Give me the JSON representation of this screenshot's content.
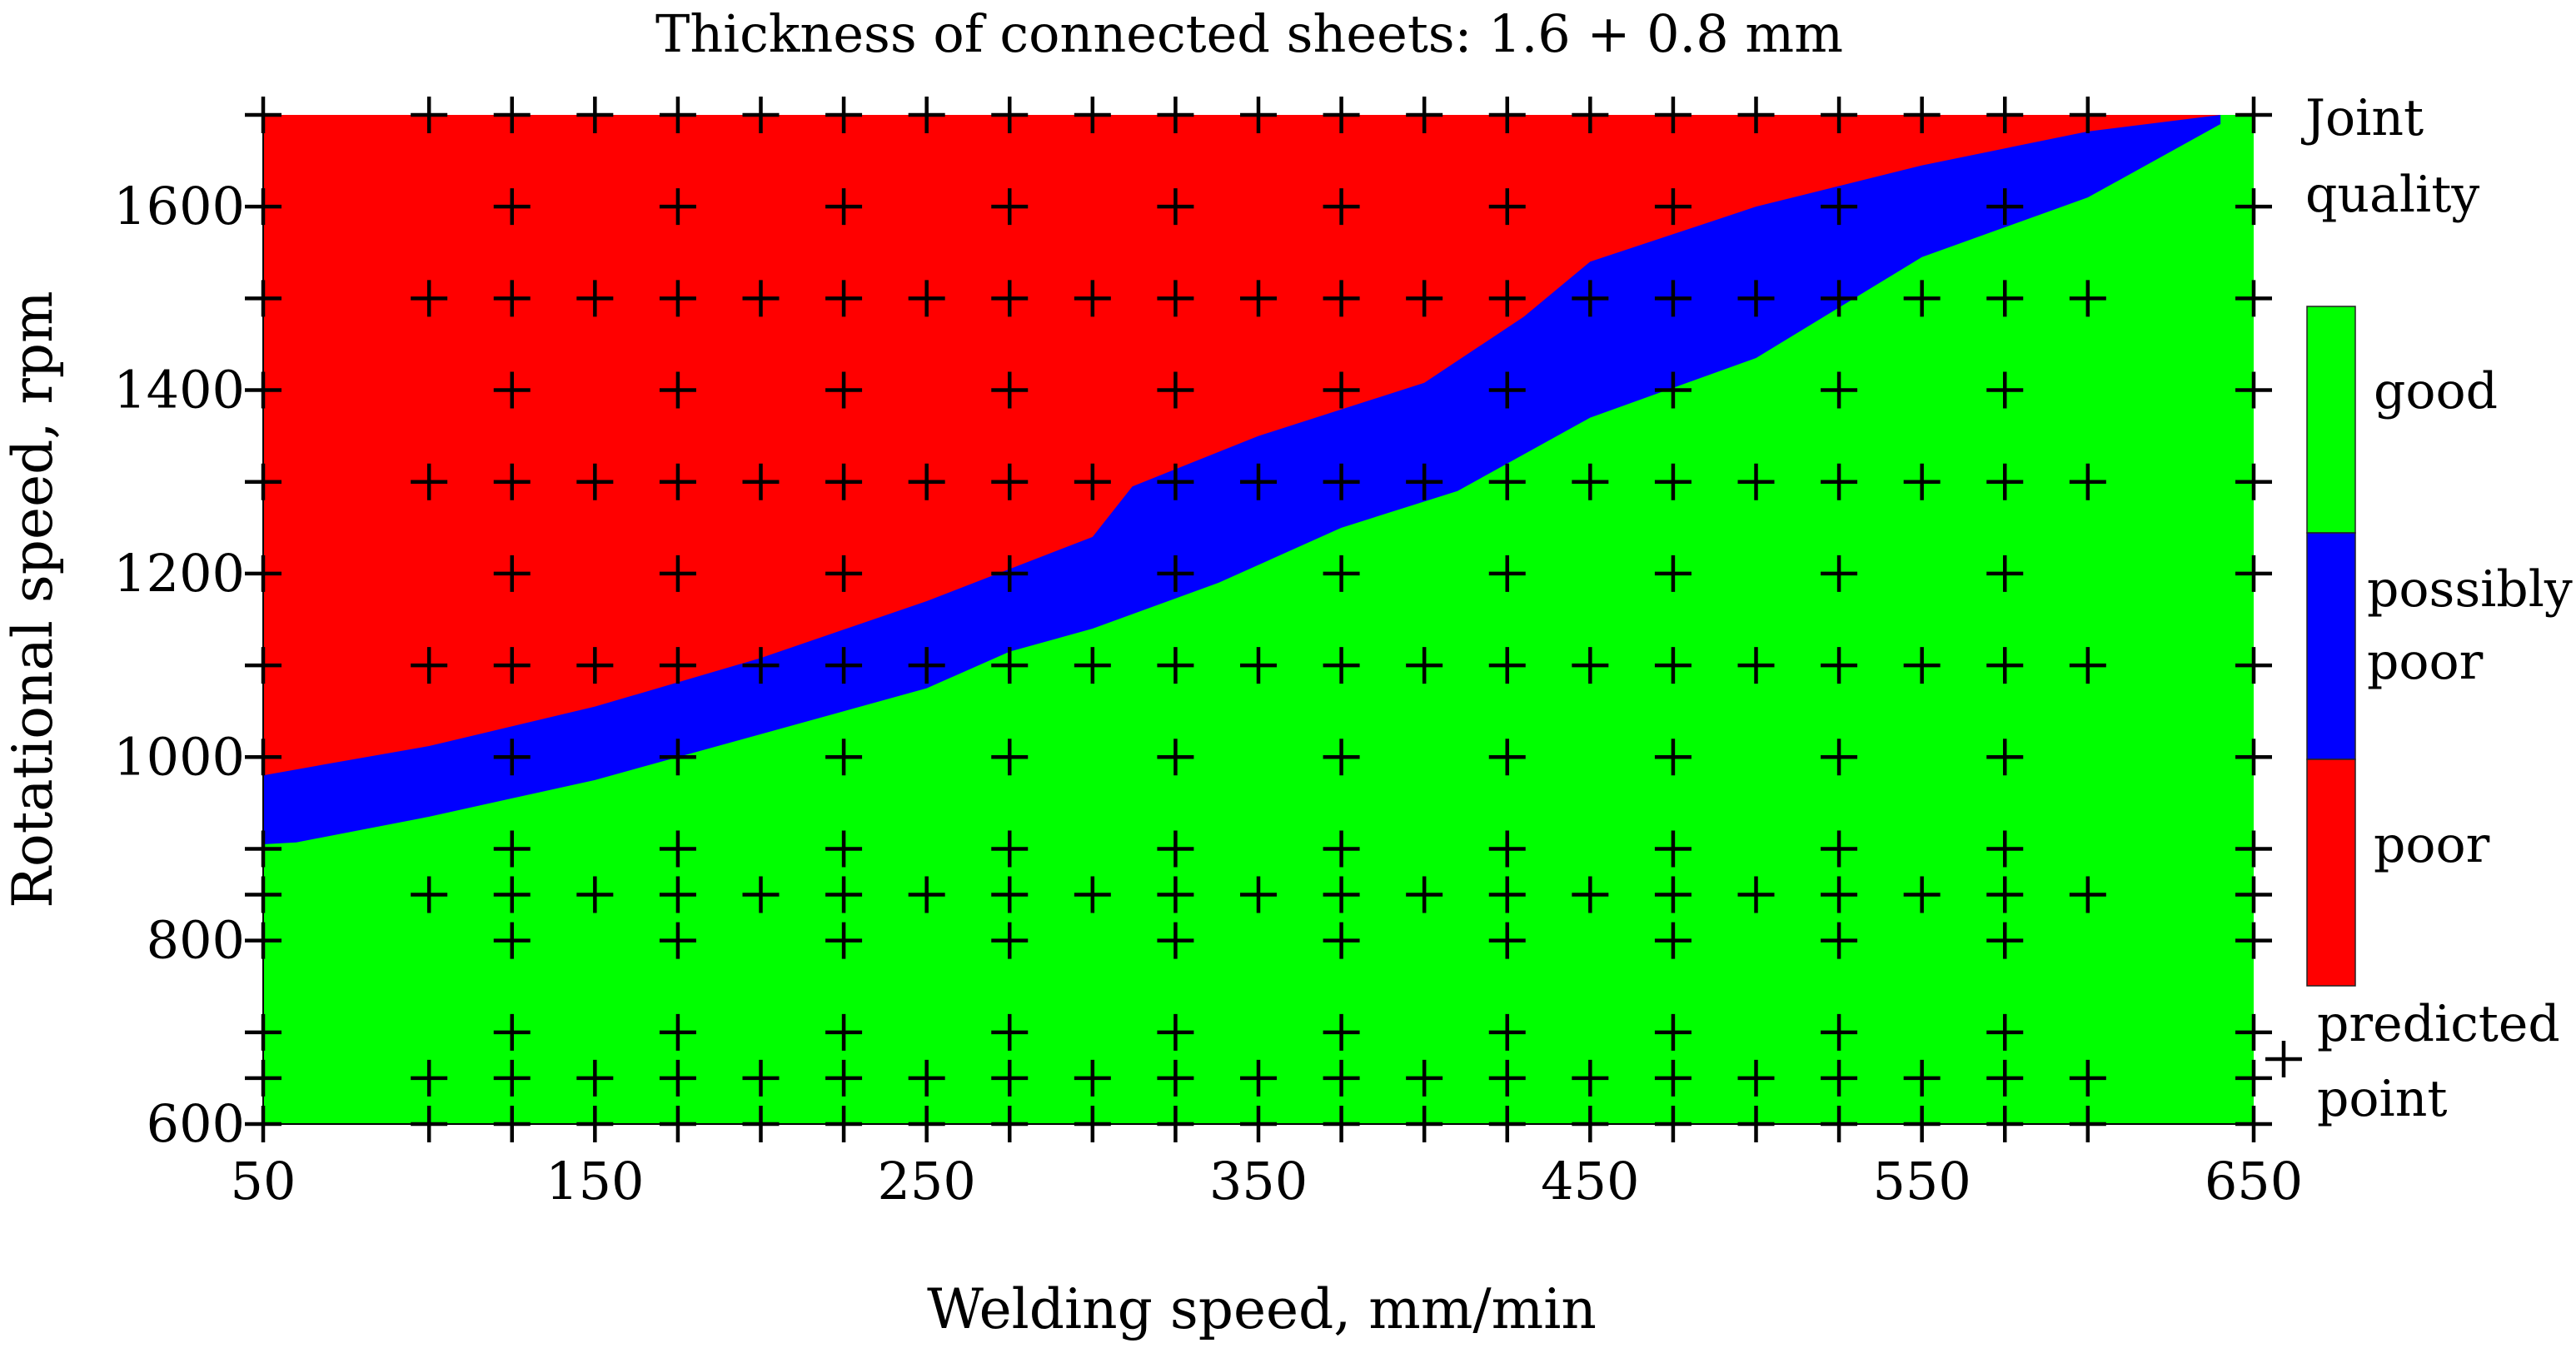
{
  "chart_data": {
    "type": "heatmap",
    "title": "Thickness of connected sheets: 1.6 + 0.8 mm",
    "xlabel": "Welding speed, mm/min",
    "ylabel": "Rotational speed, rpm",
    "xlim": [
      50,
      650
    ],
    "ylim": [
      600,
      1700
    ],
    "x_ticks": [
      50,
      150,
      250,
      350,
      450,
      550,
      650
    ],
    "y_ticks": [
      600,
      800,
      1000,
      1200,
      1400,
      1600
    ],
    "legend": {
      "title": "Joint quality",
      "placement": "right",
      "entries": [
        {
          "label": "good",
          "color": "#00ff00"
        },
        {
          "label": "possibly poor",
          "color": "#0000ff"
        },
        {
          "label": "poor",
          "color": "#ff0000"
        }
      ],
      "marker_label": "predicted point"
    },
    "regions": [
      {
        "class": "poor",
        "color": "#ff0000",
        "boundary_lower": [
          [
            50,
            980
          ],
          [
            70,
            993
          ],
          [
            100,
            1012
          ],
          [
            150,
            1055
          ],
          [
            200,
            1108
          ],
          [
            250,
            1170
          ],
          [
            300,
            1240
          ],
          [
            312,
            1295
          ],
          [
            350,
            1350
          ],
          [
            400,
            1408
          ],
          [
            430,
            1480
          ],
          [
            450,
            1540
          ],
          [
            500,
            1600
          ],
          [
            550,
            1645
          ],
          [
            600,
            1682
          ],
          [
            640,
            1700
          ]
        ]
      },
      {
        "class": "possibly poor",
        "color": "#0000ff",
        "boundary_lower": [
          [
            50,
            905
          ],
          [
            60,
            907
          ],
          [
            100,
            935
          ],
          [
            150,
            975
          ],
          [
            200,
            1025
          ],
          [
            250,
            1075
          ],
          [
            275,
            1115
          ],
          [
            300,
            1140
          ],
          [
            338,
            1190
          ],
          [
            375,
            1250
          ],
          [
            410,
            1290
          ],
          [
            450,
            1370
          ],
          [
            500,
            1435
          ],
          [
            550,
            1545
          ],
          [
            600,
            1610
          ],
          [
            640,
            1690
          ]
        ]
      },
      {
        "class": "good",
        "color": "#00ff00"
      }
    ],
    "predicted_points": {
      "rows": [
        {
          "y": 1700,
          "x": [
            50,
            100,
            125,
            150,
            175,
            200,
            225,
            250,
            275,
            300,
            325,
            350,
            375,
            400,
            425,
            450,
            475,
            500,
            525,
            550,
            575,
            600,
            650
          ]
        },
        {
          "y": 1600,
          "x": [
            50,
            125,
            175,
            225,
            275,
            325,
            375,
            425,
            475,
            525,
            575,
            650
          ]
        },
        {
          "y": 1500,
          "x": [
            50,
            100,
            125,
            150,
            175,
            200,
            225,
            250,
            275,
            300,
            325,
            350,
            375,
            400,
            425,
            450,
            475,
            500,
            525,
            550,
            575,
            600,
            650
          ]
        },
        {
          "y": 1400,
          "x": [
            50,
            125,
            175,
            225,
            275,
            325,
            375,
            425,
            475,
            525,
            575,
            650
          ]
        },
        {
          "y": 1300,
          "x": [
            50,
            100,
            125,
            150,
            175,
            200,
            225,
            250,
            275,
            300,
            325,
            350,
            375,
            400,
            425,
            450,
            475,
            500,
            525,
            550,
            575,
            600,
            650
          ]
        },
        {
          "y": 1200,
          "x": [
            50,
            125,
            175,
            225,
            275,
            325,
            375,
            425,
            475,
            525,
            575,
            650
          ]
        },
        {
          "y": 1100,
          "x": [
            50,
            100,
            125,
            150,
            175,
            200,
            225,
            250,
            275,
            300,
            325,
            350,
            375,
            400,
            425,
            450,
            475,
            500,
            525,
            550,
            575,
            600,
            650
          ]
        },
        {
          "y": 1000,
          "x": [
            50,
            125,
            175,
            225,
            275,
            325,
            375,
            425,
            475,
            525,
            575,
            650
          ]
        },
        {
          "y": 900,
          "x": [
            50,
            125,
            175,
            225,
            275,
            325,
            375,
            425,
            475,
            525,
            575,
            650
          ]
        },
        {
          "y": 850,
          "x": [
            50,
            100,
            125,
            150,
            175,
            200,
            225,
            250,
            275,
            300,
            325,
            350,
            375,
            400,
            425,
            450,
            475,
            500,
            525,
            550,
            575,
            600,
            650
          ]
        },
        {
          "y": 800,
          "x": [
            50,
            125,
            175,
            225,
            275,
            325,
            375,
            425,
            475,
            525,
            575,
            650
          ]
        },
        {
          "y": 700,
          "x": [
            50,
            125,
            175,
            225,
            275,
            325,
            375,
            425,
            475,
            525,
            575,
            650
          ]
        },
        {
          "y": 650,
          "x": [
            50,
            100,
            125,
            150,
            175,
            200,
            225,
            250,
            275,
            300,
            325,
            350,
            375,
            400,
            425,
            450,
            475,
            500,
            525,
            550,
            575,
            600,
            650
          ]
        },
        {
          "y": 600,
          "x": [
            50,
            100,
            125,
            150,
            175,
            200,
            225,
            250,
            275,
            300,
            325,
            350,
            375,
            400,
            425,
            450,
            475,
            500,
            525,
            550,
            575,
            600,
            650
          ]
        }
      ]
    }
  }
}
